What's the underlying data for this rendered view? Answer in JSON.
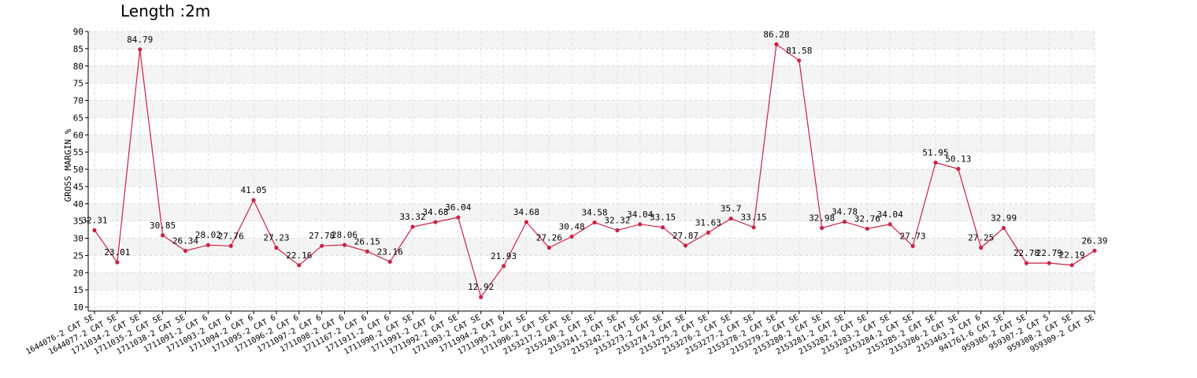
{
  "chart_data": {
    "type": "line",
    "title": "Length :2m",
    "ylabel": "GROSS MARGIN %",
    "xlabel": "",
    "ylim": [
      10,
      90
    ],
    "yticks": [
      10,
      15,
      20,
      25,
      30,
      35,
      40,
      45,
      50,
      55,
      60,
      65,
      70,
      75,
      80,
      85,
      90
    ],
    "grid": true,
    "line_color": "#cc2244",
    "categories": [
      "1644076-2 CAT 5E",
      "1644077-2 CAT 5E",
      "1711034-2 CAT 5E",
      "1711035-2 CAT 5E",
      "1711038-2 CAT 5E",
      "1711091-2 CAT 6",
      "1711093-2 CAT 6",
      "1711094-2 CAT 6",
      "1711095-2 CAT 6",
      "1711096-2 CAT 6",
      "1711097-2 CAT 6",
      "1711098-2 CAT 6",
      "1711167-2 CAT 6",
      "1711911-2 CAT 6",
      "1711990-2 CAT 5E",
      "1711991-2 CAT 6",
      "1711992-2 CAT 5E",
      "1711993-2 CAT 5E",
      "1711994-2 CAT 6",
      "1711995-2 CAT 5E",
      "1711996-2 CAT 5E",
      "2153217-2 CAT 5E",
      "2153240-2 CAT 5E",
      "2153241-2 CAT 5E",
      "2153242-2 CAT 5E",
      "2153273-2 CAT 5E",
      "2153274-2 CAT 5E",
      "2153275-2 CAT 5E",
      "2153276-2 CAT 5E",
      "2153277-2 CAT 5E",
      "2153278-2 CAT 5E",
      "2153279-2 CAT 5E",
      "2153280-2 CAT 5E",
      "2153281-2 CAT 5E",
      "2153282-2 CAT 5E",
      "2153283-2 CAT 5E",
      "2153284-2 CAT 5E",
      "2153285-2 CAT 5E",
      "2153286-2 CAT 5E",
      "2153463-2 CAT 6",
      "941761-6 CAT 5E",
      "959305-2 CAT 5E",
      "959307-2 CAT 5",
      "959308-2 CAT 5E",
      "959309-2 CAT 5E"
    ],
    "series": [
      {
        "values": [
          32.31,
          23.01,
          84.79,
          30.85,
          26.34,
          28.02,
          27.76,
          41.05,
          27.23,
          22.16,
          27.78,
          28.06,
          26.15,
          23.16,
          33.32,
          34.68,
          36.04,
          12.92,
          21.93,
          34.68,
          27.26,
          30.48,
          34.58,
          32.32,
          34.04,
          33.15,
          27.87,
          31.63,
          35.7,
          33.15,
          86.28,
          81.58,
          32.98,
          34.78,
          32.76,
          34.04,
          27.73,
          51.95,
          50.13,
          27.25,
          32.99,
          22.78,
          22.79,
          22.19,
          26.39
        ]
      }
    ]
  }
}
